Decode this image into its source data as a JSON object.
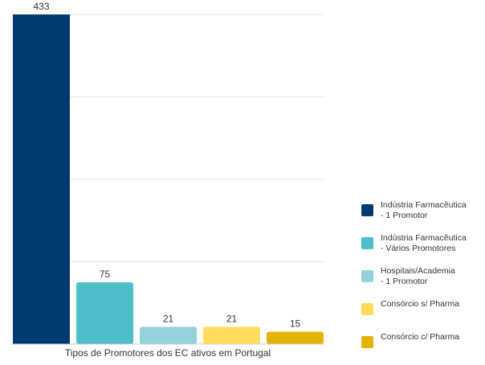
{
  "chart_data": {
    "type": "bar",
    "categories": [
      "Indústria Farmacêutica - 1 Promotor",
      "Indústria Farmacêutica - Vários Promotores",
      "Hospitais/Academia - 1 Promotor",
      "Consórcio s/ Pharma",
      "Consórcio c/ Pharma"
    ],
    "values": [
      433,
      75,
      21,
      21,
      15
    ],
    "value_labels": [
      "433",
      "75",
      "21",
      "21",
      "15"
    ],
    "colors": [
      "#003a70",
      "#4dbfcb",
      "#93d1dc",
      "#fedd5a",
      "#e4b300"
    ],
    "xlabel": "Tipos de Promotores dos EC ativos em Portugal",
    "ylabel": "",
    "ylim": [
      0,
      400
    ],
    "grid": true,
    "legend_position": "right",
    "legend": [
      {
        "line1": "Indústria Farmacêutica",
        "line2": "- 1 Promotor",
        "color": "#003a70"
      },
      {
        "line1": "Indústria Farmacêutica",
        "line2": "- Vários Promotores",
        "color": "#4dbfcb"
      },
      {
        "line1": "Hospitais/Academia",
        "line2": "- 1 Promotor",
        "color": "#93d1dc"
      },
      {
        "line1": "Consórcio s/ Pharma",
        "line2": "",
        "color": "#fedd5a"
      },
      {
        "line1": "Consórcio c/ Pharma",
        "line2": "",
        "color": "#e4b300"
      }
    ]
  }
}
